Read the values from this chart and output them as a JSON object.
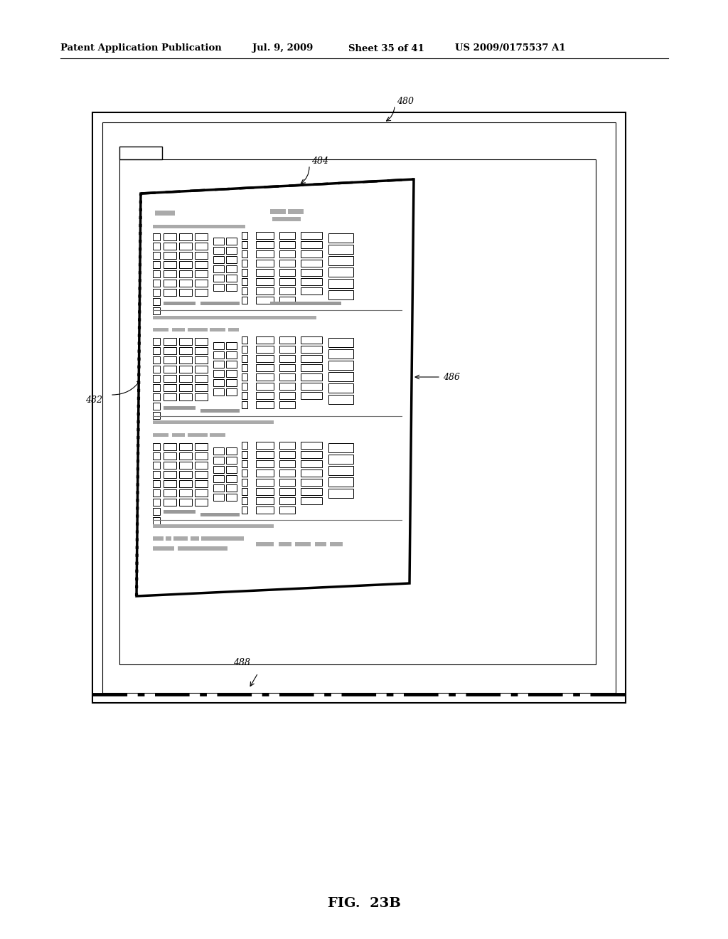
{
  "bg_color": "#ffffff",
  "header_text": "Patent Application Publication",
  "header_date": "Jul. 9, 2009",
  "header_sheet": "Sheet 35 of 41",
  "header_patent": "US 2009/0175537 A1",
  "fig_label": "FIG.  23B",
  "label_480": "480",
  "label_482": "482",
  "label_484": "484",
  "label_486": "486",
  "label_488": "488"
}
